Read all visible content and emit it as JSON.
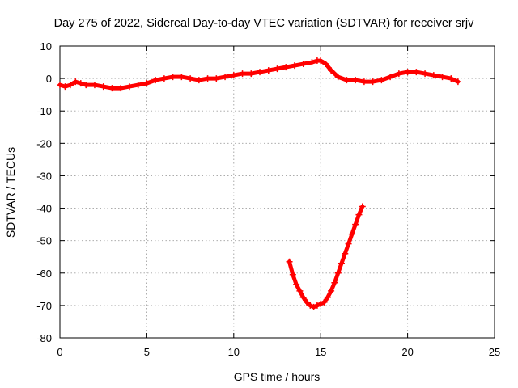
{
  "chart_data": {
    "type": "scatter",
    "title": "Day 275 of 2022, Sidereal Day-to-day VTEC variation (SDTVAR) for receiver srjv",
    "xlabel": "GPS time / hours",
    "ylabel": "SDTVAR / TECUs",
    "xlim": [
      0,
      25
    ],
    "ylim": [
      -80,
      10
    ],
    "xticks": [
      0,
      5,
      10,
      15,
      20,
      25
    ],
    "yticks": [
      10,
      0,
      -10,
      -20,
      -30,
      -40,
      -50,
      -60,
      -70,
      -80
    ],
    "grid": true,
    "marker": "plus",
    "color": "#ff0000",
    "series": [
      {
        "name": "sdtvar-main",
        "x": [
          0,
          0.3,
          0.6,
          0.9,
          1.2,
          1.5,
          2,
          2.5,
          3,
          3.5,
          4,
          4.5,
          5,
          5.5,
          6,
          6.5,
          7,
          7.5,
          8,
          8.5,
          9,
          9.5,
          10,
          10.5,
          11,
          11.5,
          12,
          12.5,
          13,
          13.5,
          14,
          14.5,
          14.8,
          15.0,
          15.3,
          15.6,
          16,
          16.5,
          17,
          17.5,
          18,
          18.5,
          19,
          19.5,
          20,
          20.5,
          21,
          21.5,
          22,
          22.5,
          22.9
        ],
        "y": [
          -2,
          -2.5,
          -2,
          -1,
          -1.5,
          -2,
          -2,
          -2.5,
          -3,
          -3,
          -2.5,
          -2,
          -1.5,
          -0.5,
          0,
          0.5,
          0.5,
          0,
          -0.5,
          0,
          0,
          0.5,
          1,
          1.5,
          1.5,
          2,
          2.5,
          3,
          3.5,
          4,
          4.5,
          5,
          5.5,
          5.5,
          4.5,
          2.5,
          0.5,
          -0.5,
          -0.5,
          -1,
          -1,
          -0.5,
          0.5,
          1.5,
          2,
          2,
          1.5,
          1,
          0.5,
          0,
          -1
        ]
      },
      {
        "name": "sdtvar-dip",
        "x": [
          13.2,
          13.4,
          13.6,
          13.8,
          14.0,
          14.2,
          14.4,
          14.6,
          14.8,
          15.0,
          15.2,
          15.4,
          15.6,
          15.8,
          16.0,
          16.2,
          16.4,
          16.6,
          16.8,
          17.0,
          17.2,
          17.4
        ],
        "y": [
          -56.5,
          -60.5,
          -63.5,
          -65.5,
          -67.5,
          -69,
          -70,
          -70.5,
          -70,
          -69.5,
          -69,
          -67.5,
          -65.5,
          -63,
          -60,
          -57,
          -54,
          -51,
          -48,
          -45,
          -42,
          -39.5
        ]
      }
    ]
  }
}
